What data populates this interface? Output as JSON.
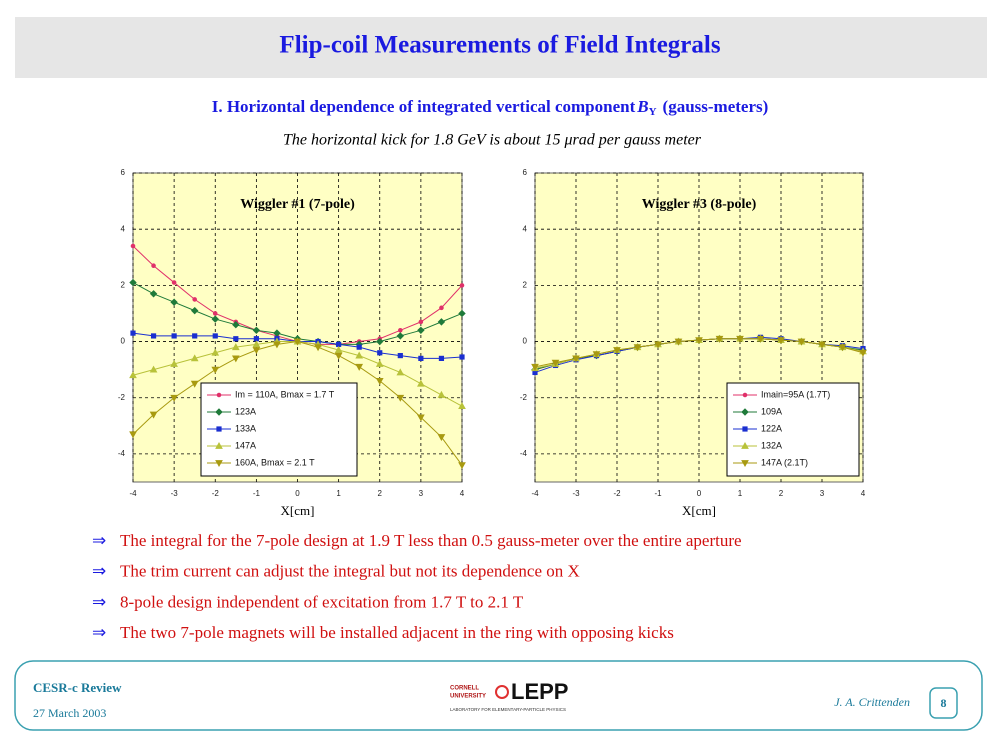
{
  "header": {
    "title": "Flip-coil Measurements of Field Integrals"
  },
  "subtitle": {
    "prefix": "I. Horizontal dependence of integrated vertical component",
    "symbol": "B",
    "subscript": "Y",
    "suffix": "(gauss-meters)"
  },
  "note": "The horizontal kick for 1.8 GeV is about 15 μrad per gauss meter",
  "chart_data": [
    {
      "type": "line",
      "annotation": "Wiggler #1  (7-pole)",
      "x_label": "X[cm]",
      "x": [
        -4,
        -3.5,
        -3,
        -2.5,
        -2,
        -1.5,
        -1,
        -0.5,
        0,
        0.5,
        1,
        1.5,
        2,
        2.5,
        3,
        3.5,
        4
      ],
      "xlim": [
        -4,
        4
      ],
      "xticks": [
        -4,
        -3,
        -2,
        -1,
        0,
        1,
        2,
        3,
        4
      ],
      "ylim": [
        -5,
        6
      ],
      "yticks": [
        -4,
        -2,
        0,
        2,
        4,
        6
      ],
      "grid": true,
      "legend": "lower left",
      "series": [
        {
          "name": "Im = 110A, Bmax = 1.7 T",
          "color": "#e0306a",
          "marker": "circle",
          "values": [
            3.4,
            2.7,
            2.1,
            1.5,
            1.0,
            0.7,
            0.4,
            0.2,
            0.0,
            -0.1,
            -0.1,
            0.0,
            0.1,
            0.4,
            0.7,
            1.2,
            2.0
          ]
        },
        {
          "name": "123A",
          "color": "#1f7a3a",
          "marker": "diamond",
          "values": [
            2.1,
            1.7,
            1.4,
            1.1,
            0.8,
            0.6,
            0.4,
            0.3,
            0.1,
            0.0,
            -0.1,
            -0.1,
            0.0,
            0.2,
            0.4,
            0.7,
            1.0
          ]
        },
        {
          "name": "133A",
          "color": "#1a2fd0",
          "marker": "square",
          "values": [
            0.3,
            0.2,
            0.2,
            0.2,
            0.2,
            0.1,
            0.1,
            0.1,
            0.0,
            0.0,
            -0.1,
            -0.2,
            -0.4,
            -0.5,
            -0.6,
            -0.6,
            -0.55
          ]
        },
        {
          "name": "147A",
          "color": "#b8c23a",
          "marker": "triangle",
          "values": [
            -1.2,
            -1.0,
            -0.8,
            -0.6,
            -0.4,
            -0.2,
            -0.1,
            0.0,
            0.0,
            -0.1,
            -0.3,
            -0.5,
            -0.8,
            -1.1,
            -1.5,
            -1.9,
            -2.3
          ]
        },
        {
          "name": "160A, Bmax = 2.1 T",
          "color": "#a89a10",
          "marker": "triangle-down",
          "values": [
            -3.3,
            -2.6,
            -2.0,
            -1.5,
            -1.0,
            -0.6,
            -0.3,
            -0.1,
            0.0,
            -0.2,
            -0.5,
            -0.9,
            -1.4,
            -2.0,
            -2.7,
            -3.4,
            -4.4
          ]
        }
      ]
    },
    {
      "type": "line",
      "annotation": "Wiggler #3  (8-pole)",
      "x_label": "X[cm]",
      "x": [
        -4,
        -3.5,
        -3,
        -2.5,
        -2,
        -1.5,
        -1,
        -0.5,
        0,
        0.5,
        1,
        1.5,
        2,
        2.5,
        3,
        3.5,
        4
      ],
      "xlim": [
        -4,
        4
      ],
      "xticks": [
        -4,
        -3,
        -2,
        -1,
        0,
        1,
        2,
        3,
        4
      ],
      "ylim": [
        -5,
        6
      ],
      "yticks": [
        -4,
        -2,
        0,
        2,
        4,
        6
      ],
      "grid": true,
      "legend": "lower right",
      "series": [
        {
          "name": "Imain=95A (1.7T)",
          "color": "#e0306a",
          "marker": "circle",
          "values": [
            -1.0,
            -0.8,
            -0.6,
            -0.5,
            -0.35,
            -0.2,
            -0.1,
            0.0,
            0.05,
            0.1,
            0.1,
            0.1,
            0.05,
            0.0,
            -0.1,
            -0.2,
            -0.35
          ]
        },
        {
          "name": "109A",
          "color": "#1f7a3a",
          "marker": "diamond",
          "values": [
            -1.0,
            -0.8,
            -0.6,
            -0.5,
            -0.35,
            -0.2,
            -0.1,
            0.0,
            0.05,
            0.1,
            0.1,
            0.1,
            0.05,
            0.0,
            -0.1,
            -0.2,
            -0.3
          ]
        },
        {
          "name": "122A",
          "color": "#1a2fd0",
          "marker": "square",
          "values": [
            -1.1,
            -0.85,
            -0.65,
            -0.5,
            -0.35,
            -0.2,
            -0.1,
            0.0,
            0.05,
            0.1,
            0.1,
            0.15,
            0.1,
            0.0,
            -0.1,
            -0.15,
            -0.25
          ]
        },
        {
          "name": "132A",
          "color": "#b8c23a",
          "marker": "triangle",
          "values": [
            -0.95,
            -0.8,
            -0.6,
            -0.45,
            -0.3,
            -0.2,
            -0.1,
            0.0,
            0.05,
            0.1,
            0.1,
            0.1,
            0.05,
            0.0,
            -0.1,
            -0.2,
            -0.35
          ]
        },
        {
          "name": "147A (2.1T)",
          "color": "#a89a10",
          "marker": "triangle-down",
          "values": [
            -0.9,
            -0.75,
            -0.6,
            -0.45,
            -0.3,
            -0.2,
            -0.1,
            0.0,
            0.05,
            0.1,
            0.1,
            0.1,
            0.05,
            0.0,
            -0.1,
            -0.2,
            -0.4
          ]
        }
      ]
    }
  ],
  "bullets": {
    "arrow": "⇒",
    "items": [
      "The integral for the 7-pole design at 1.9 T less than 0.5 gauss-meter over the entire aperture",
      "The trim current can adjust the integral but not its dependence on X",
      "8-pole design independent of excitation from 1.7 T to 2.1 T",
      "The two 7-pole magnets will be installed adjacent in the ring with opposing kicks"
    ]
  },
  "footer": {
    "event": "CESR-c Review",
    "date": "27 March 2003",
    "logo": {
      "line1": "CORNELL",
      "line2": "UNIVERSITY",
      "name": "LEPP",
      "tagline": "LABORATORY FOR ELEMENTARY-PARTICLE PHYSICS"
    },
    "author": "J. A. Crittenden",
    "page": "8"
  }
}
